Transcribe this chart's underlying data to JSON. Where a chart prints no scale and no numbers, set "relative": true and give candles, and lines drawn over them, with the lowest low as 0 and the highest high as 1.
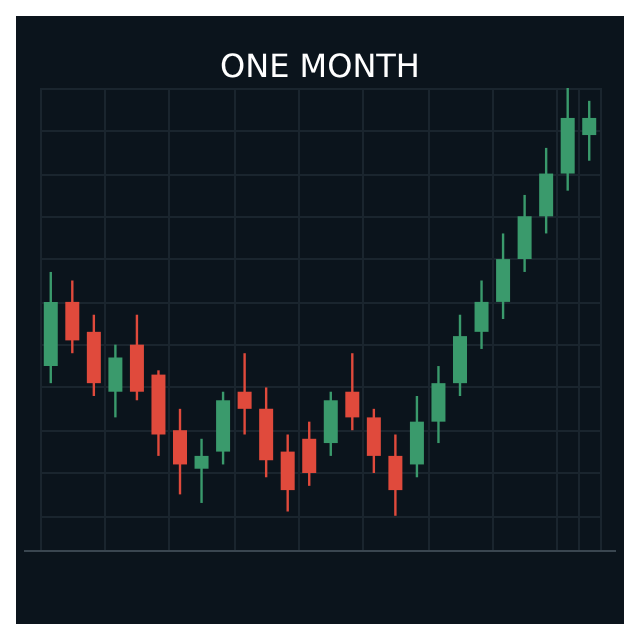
{
  "chart_data": {
    "type": "candlestick",
    "title": "ONE MONTH",
    "relative": true,
    "grid": true,
    "categories": [
      null,
      null,
      null,
      null,
      null,
      null,
      null,
      null,
      null,
      null,
      null,
      null,
      null,
      null,
      null,
      null,
      null,
      null,
      null,
      null,
      null,
      null,
      null,
      null,
      null,
      null
    ],
    "series": [
      {
        "colors": [
          "#3a9a6c",
          "#e04a3c",
          "#e04a3c",
          "#3a9a6c",
          "#e04a3c",
          "#e04a3c",
          "#e04a3c",
          "#3a9a6c",
          "#3a9a6c",
          "#e04a3c",
          "#e04a3c",
          "#e04a3c",
          "#e04a3c",
          "#3a9a6c",
          "#e04a3c",
          "#e04a3c",
          "#e04a3c",
          "#3a9a6c",
          "#3a9a6c",
          "#3a9a6c",
          "#3a9a6c",
          "#3a9a6c",
          "#3a9a6c",
          "#3a9a6c",
          "#3a9a6c",
          "#3a9a6c"
        ],
        "ohlc": [
          [
            0.35,
            0.57,
            0.31,
            0.5
          ],
          [
            0.5,
            0.55,
            0.38,
            0.41
          ],
          [
            0.43,
            0.47,
            0.28,
            0.31
          ],
          [
            0.29,
            0.4,
            0.23,
            0.37
          ],
          [
            0.4,
            0.47,
            0.27,
            0.29
          ],
          [
            0.33,
            0.34,
            0.14,
            0.19
          ],
          [
            0.2,
            0.25,
            0.05,
            0.12
          ],
          [
            0.11,
            0.18,
            0.03,
            0.14
          ],
          [
            0.15,
            0.29,
            0.12,
            0.27
          ],
          [
            0.29,
            0.38,
            0.19,
            0.25
          ],
          [
            0.25,
            0.3,
            0.09,
            0.13
          ],
          [
            0.15,
            0.19,
            0.01,
            0.06
          ],
          [
            0.18,
            0.22,
            0.07,
            0.1
          ],
          [
            0.17,
            0.29,
            0.14,
            0.27
          ],
          [
            0.29,
            0.38,
            0.2,
            0.23
          ],
          [
            0.23,
            0.25,
            0.1,
            0.14
          ],
          [
            0.14,
            0.19,
            0,
            0.06
          ],
          [
            0.12,
            0.28,
            0.09,
            0.22
          ],
          [
            0.22,
            0.35,
            0.17,
            0.31
          ],
          [
            0.31,
            0.47,
            0.28,
            0.42
          ],
          [
            0.43,
            0.55,
            0.39,
            0.5
          ],
          [
            0.5,
            0.66,
            0.46,
            0.6
          ],
          [
            0.6,
            0.75,
            0.57,
            0.7
          ],
          [
            0.7,
            0.86,
            0.66,
            0.8
          ],
          [
            0.8,
            1,
            0.76,
            0.93
          ],
          [
            0.89,
            0.97,
            0.83,
            0.93
          ]
        ]
      }
    ]
  }
}
